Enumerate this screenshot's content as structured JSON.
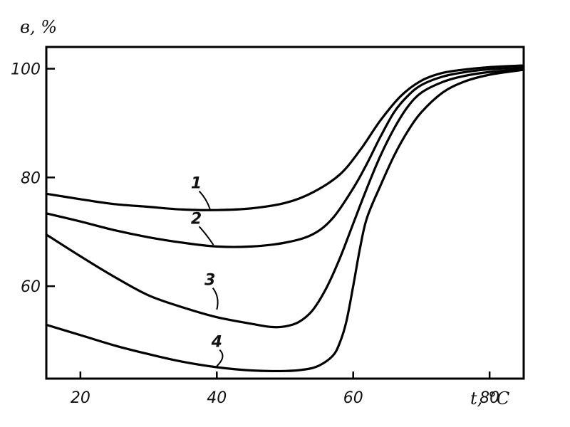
{
  "chart_data": {
    "type": "line",
    "xlabel": "t, °C",
    "ylabel": "в, %",
    "xlim": [
      15,
      85
    ],
    "ylim": [
      43,
      104
    ],
    "x_ticks": [
      20,
      40,
      60,
      80
    ],
    "y_ticks": [
      60,
      80,
      100
    ],
    "x_tick_labels": [
      "20",
      "40",
      "60",
      "80"
    ],
    "y_tick_labels": [
      "60",
      "80",
      "100"
    ],
    "grid": false,
    "series": [
      {
        "name": "1",
        "label_at": [
          37,
          78
        ],
        "leader_to": [
          39,
          74.2
        ],
        "points": [
          [
            15,
            77
          ],
          [
            20,
            76
          ],
          [
            25,
            75.1
          ],
          [
            30,
            74.6
          ],
          [
            35,
            74.1
          ],
          [
            40,
            74
          ],
          [
            45,
            74.3
          ],
          [
            50,
            75.3
          ],
          [
            54,
            77.2
          ],
          [
            58,
            80.5
          ],
          [
            61,
            85
          ],
          [
            64,
            90.5
          ],
          [
            67,
            95
          ],
          [
            70,
            97.8
          ],
          [
            73,
            99.2
          ],
          [
            76,
            99.8
          ],
          [
            80,
            100.3
          ],
          [
            85,
            100.6
          ]
        ]
      },
      {
        "name": "2",
        "label_at": [
          37,
          71.5
        ],
        "leader_to": [
          39.5,
          67.6
        ],
        "points": [
          [
            15,
            73.4
          ],
          [
            20,
            71.9
          ],
          [
            25,
            70.3
          ],
          [
            30,
            69
          ],
          [
            35,
            68
          ],
          [
            40,
            67.3
          ],
          [
            45,
            67.3
          ],
          [
            50,
            68
          ],
          [
            54,
            69.5
          ],
          [
            57,
            72.5
          ],
          [
            60,
            78
          ],
          [
            62,
            82.5
          ],
          [
            64,
            87.5
          ],
          [
            66,
            92
          ],
          [
            68,
            95
          ],
          [
            70,
            97
          ],
          [
            73,
            98.5
          ],
          [
            76,
            99.3
          ],
          [
            80,
            99.9
          ],
          [
            85,
            100.2
          ]
        ]
      },
      {
        "name": "3",
        "label_at": [
          39,
          60.2
        ],
        "leader_to": [
          40,
          55.7
        ],
        "points": [
          [
            15,
            69.5
          ],
          [
            20,
            65.5
          ],
          [
            25,
            61.7
          ],
          [
            30,
            58.3
          ],
          [
            35,
            56.1
          ],
          [
            40,
            54.3
          ],
          [
            45,
            53.1
          ],
          [
            48,
            52.5
          ],
          [
            50,
            52.6
          ],
          [
            52,
            53.4
          ],
          [
            54,
            55.5
          ],
          [
            56,
            59.5
          ],
          [
            58,
            65
          ],
          [
            60,
            71.5
          ],
          [
            62,
            78
          ],
          [
            64,
            84
          ],
          [
            66,
            89
          ],
          [
            68,
            93
          ],
          [
            70,
            95.6
          ],
          [
            73,
            97.5
          ],
          [
            76,
            98.6
          ],
          [
            80,
            99.4
          ],
          [
            85,
            99.9
          ]
        ]
      },
      {
        "name": "4",
        "label_at": [
          40,
          48.8
        ],
        "leader_to": [
          40,
          45.3
        ],
        "points": [
          [
            15,
            52.9
          ],
          [
            20,
            51
          ],
          [
            25,
            49.1
          ],
          [
            30,
            47.5
          ],
          [
            35,
            46.1
          ],
          [
            40,
            45.1
          ],
          [
            45,
            44.5
          ],
          [
            50,
            44.4
          ],
          [
            53,
            44.7
          ],
          [
            55,
            45.4
          ],
          [
            57,
            47.2
          ],
          [
            58,
            49.5
          ],
          [
            59,
            53.5
          ],
          [
            60,
            60
          ],
          [
            61,
            67
          ],
          [
            62,
            72.5
          ],
          [
            64,
            78.5
          ],
          [
            66,
            84
          ],
          [
            68,
            88.5
          ],
          [
            70,
            92
          ],
          [
            73,
            95.5
          ],
          [
            76,
            97.5
          ],
          [
            80,
            98.9
          ],
          [
            85,
            99.8
          ]
        ]
      }
    ]
  }
}
